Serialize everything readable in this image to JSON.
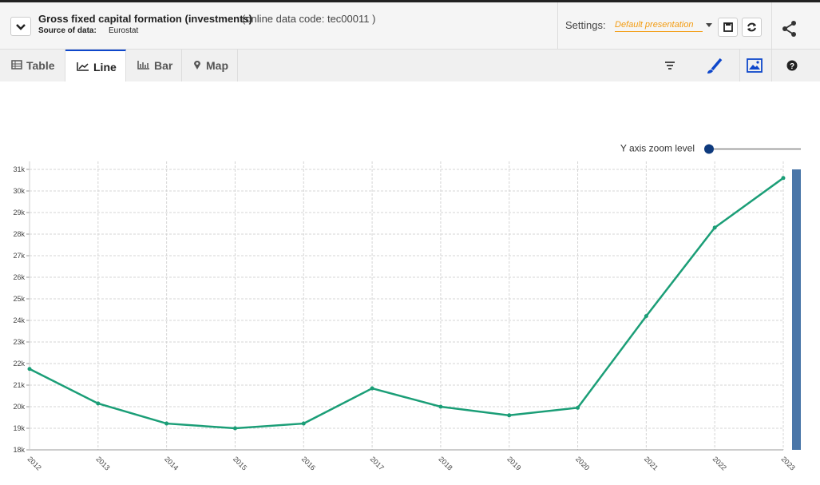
{
  "header": {
    "title": "Gross fixed capital formation (investments)",
    "code": "(online data code: tec00011 )",
    "source_label": "Source of data:",
    "source": "Eurostat",
    "settings_label": "Settings:",
    "settings_value": "Default presentation"
  },
  "tabs": [
    "Table",
    "Line",
    "Bar",
    "Map"
  ],
  "zoom_label": "Y axis zoom level",
  "chart_data": {
    "type": "line",
    "categories": [
      "2012",
      "2013",
      "2014",
      "2015",
      "2016",
      "2017",
      "2018",
      "2019",
      "2020",
      "2021",
      "2022",
      "2023"
    ],
    "values": [
      21750,
      20150,
      19220,
      19000,
      19220,
      20850,
      20000,
      19600,
      19950,
      24200,
      28300,
      30600
    ],
    "color": "#1b9e77",
    "ylim": [
      18000,
      31000
    ],
    "yticks": [
      {
        "value": 18000,
        "label": "18k"
      },
      {
        "value": 19000,
        "label": "19k"
      },
      {
        "value": 20000,
        "label": "20k"
      },
      {
        "value": 21000,
        "label": "21k"
      },
      {
        "value": 22000,
        "label": "22k"
      },
      {
        "value": 23000,
        "label": "23k"
      },
      {
        "value": 24000,
        "label": "24k"
      },
      {
        "value": 25000,
        "label": "25k"
      },
      {
        "value": 26000,
        "label": "26k"
      },
      {
        "value": 27000,
        "label": "27k"
      },
      {
        "value": 28000,
        "label": "28k"
      },
      {
        "value": 29000,
        "label": "29k"
      },
      {
        "value": 30000,
        "label": "30k"
      },
      {
        "value": 31000,
        "label": "31k"
      }
    ],
    "grid": true
  }
}
